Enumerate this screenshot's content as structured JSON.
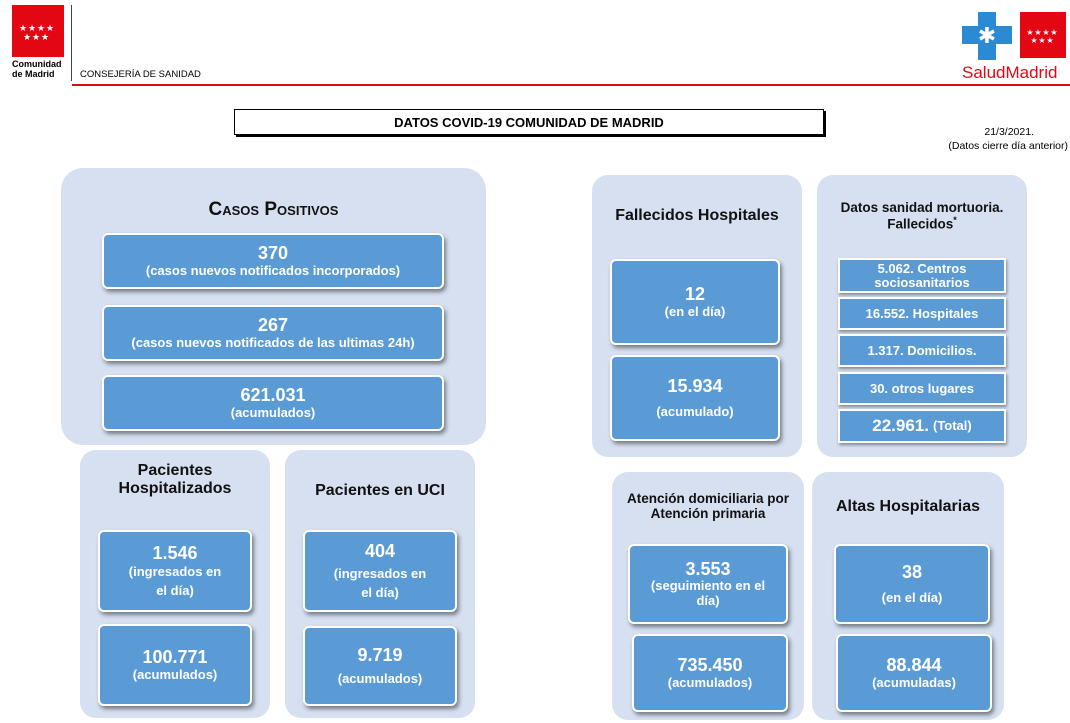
{
  "header": {
    "left_logo_text_1": "Comunidad",
    "left_logo_text_2": "de Madrid",
    "department": "CONSEJERÍA DE SANIDAD",
    "right_logo_text_1": "Salud",
    "right_logo_text_2": "Madrid"
  },
  "title": "DATOS COVID-19 COMUNIDAD DE MADRID",
  "date": "21/3/2021.",
  "date_note": "(Datos cierre día anterior)",
  "casos": {
    "title": "Casos Positivos",
    "items": [
      {
        "value": "370",
        "label": "(casos nuevos notificados incorporados)"
      },
      {
        "value": "267",
        "label": "(casos nuevos notificados de las ultimas 24h)"
      },
      {
        "value": "621.031",
        "label": "(acumulados)"
      }
    ]
  },
  "hospitalizados": {
    "title": "Pacientes Hospitalizados",
    "day_value": "1.546",
    "day_label_1": "(ingresados en",
    "day_label_2": "el día)",
    "acc_value": "100.771",
    "acc_label": "(acumulados)"
  },
  "uci": {
    "title": "Pacientes en UCI",
    "day_value": "404",
    "day_label_1": "(ingresados en",
    "day_label_2": "el día)",
    "acc_value": "9.719",
    "acc_label": "(acumulados)"
  },
  "fallecidos": {
    "title": "Fallecidos Hospitales",
    "day_value": "12",
    "day_label": "(en el día)",
    "acc_value": "15.934",
    "acc_label": "(acumulado)"
  },
  "mortuoria": {
    "title_1": "Datos sanidad mortuoria.",
    "title_2": "Fallecidos",
    "asterisk": "*",
    "items": [
      {
        "line1": "5.062. Centros",
        "line2": "sociosanitarios"
      },
      {
        "line1": "16.552. Hospitales",
        "line2": ""
      },
      {
        "line1": "1.317. Domicilios.",
        "line2": ""
      },
      {
        "line1": "30. otros lugares",
        "line2": ""
      }
    ],
    "total_value": "22.961.",
    "total_label": "(Total)"
  },
  "atencion": {
    "title_1": "Atención domiciliaria por",
    "title_2": "Atención primaria",
    "day_value": "3.553",
    "day_label_1": "(seguimiento en el",
    "day_label_2": "día)",
    "acc_value": "735.450",
    "acc_label": "(acumulados)"
  },
  "altas": {
    "title": "Altas Hospitalarias",
    "day_value": "38",
    "day_label": "(en el día)",
    "acc_value": "88.844",
    "acc_label": "(acumuladas)"
  },
  "colors": {
    "panel": "#d6e0f0",
    "box": "#5b9bd5",
    "red": "#e30613",
    "salud_blue": "#2a8ad4"
  }
}
